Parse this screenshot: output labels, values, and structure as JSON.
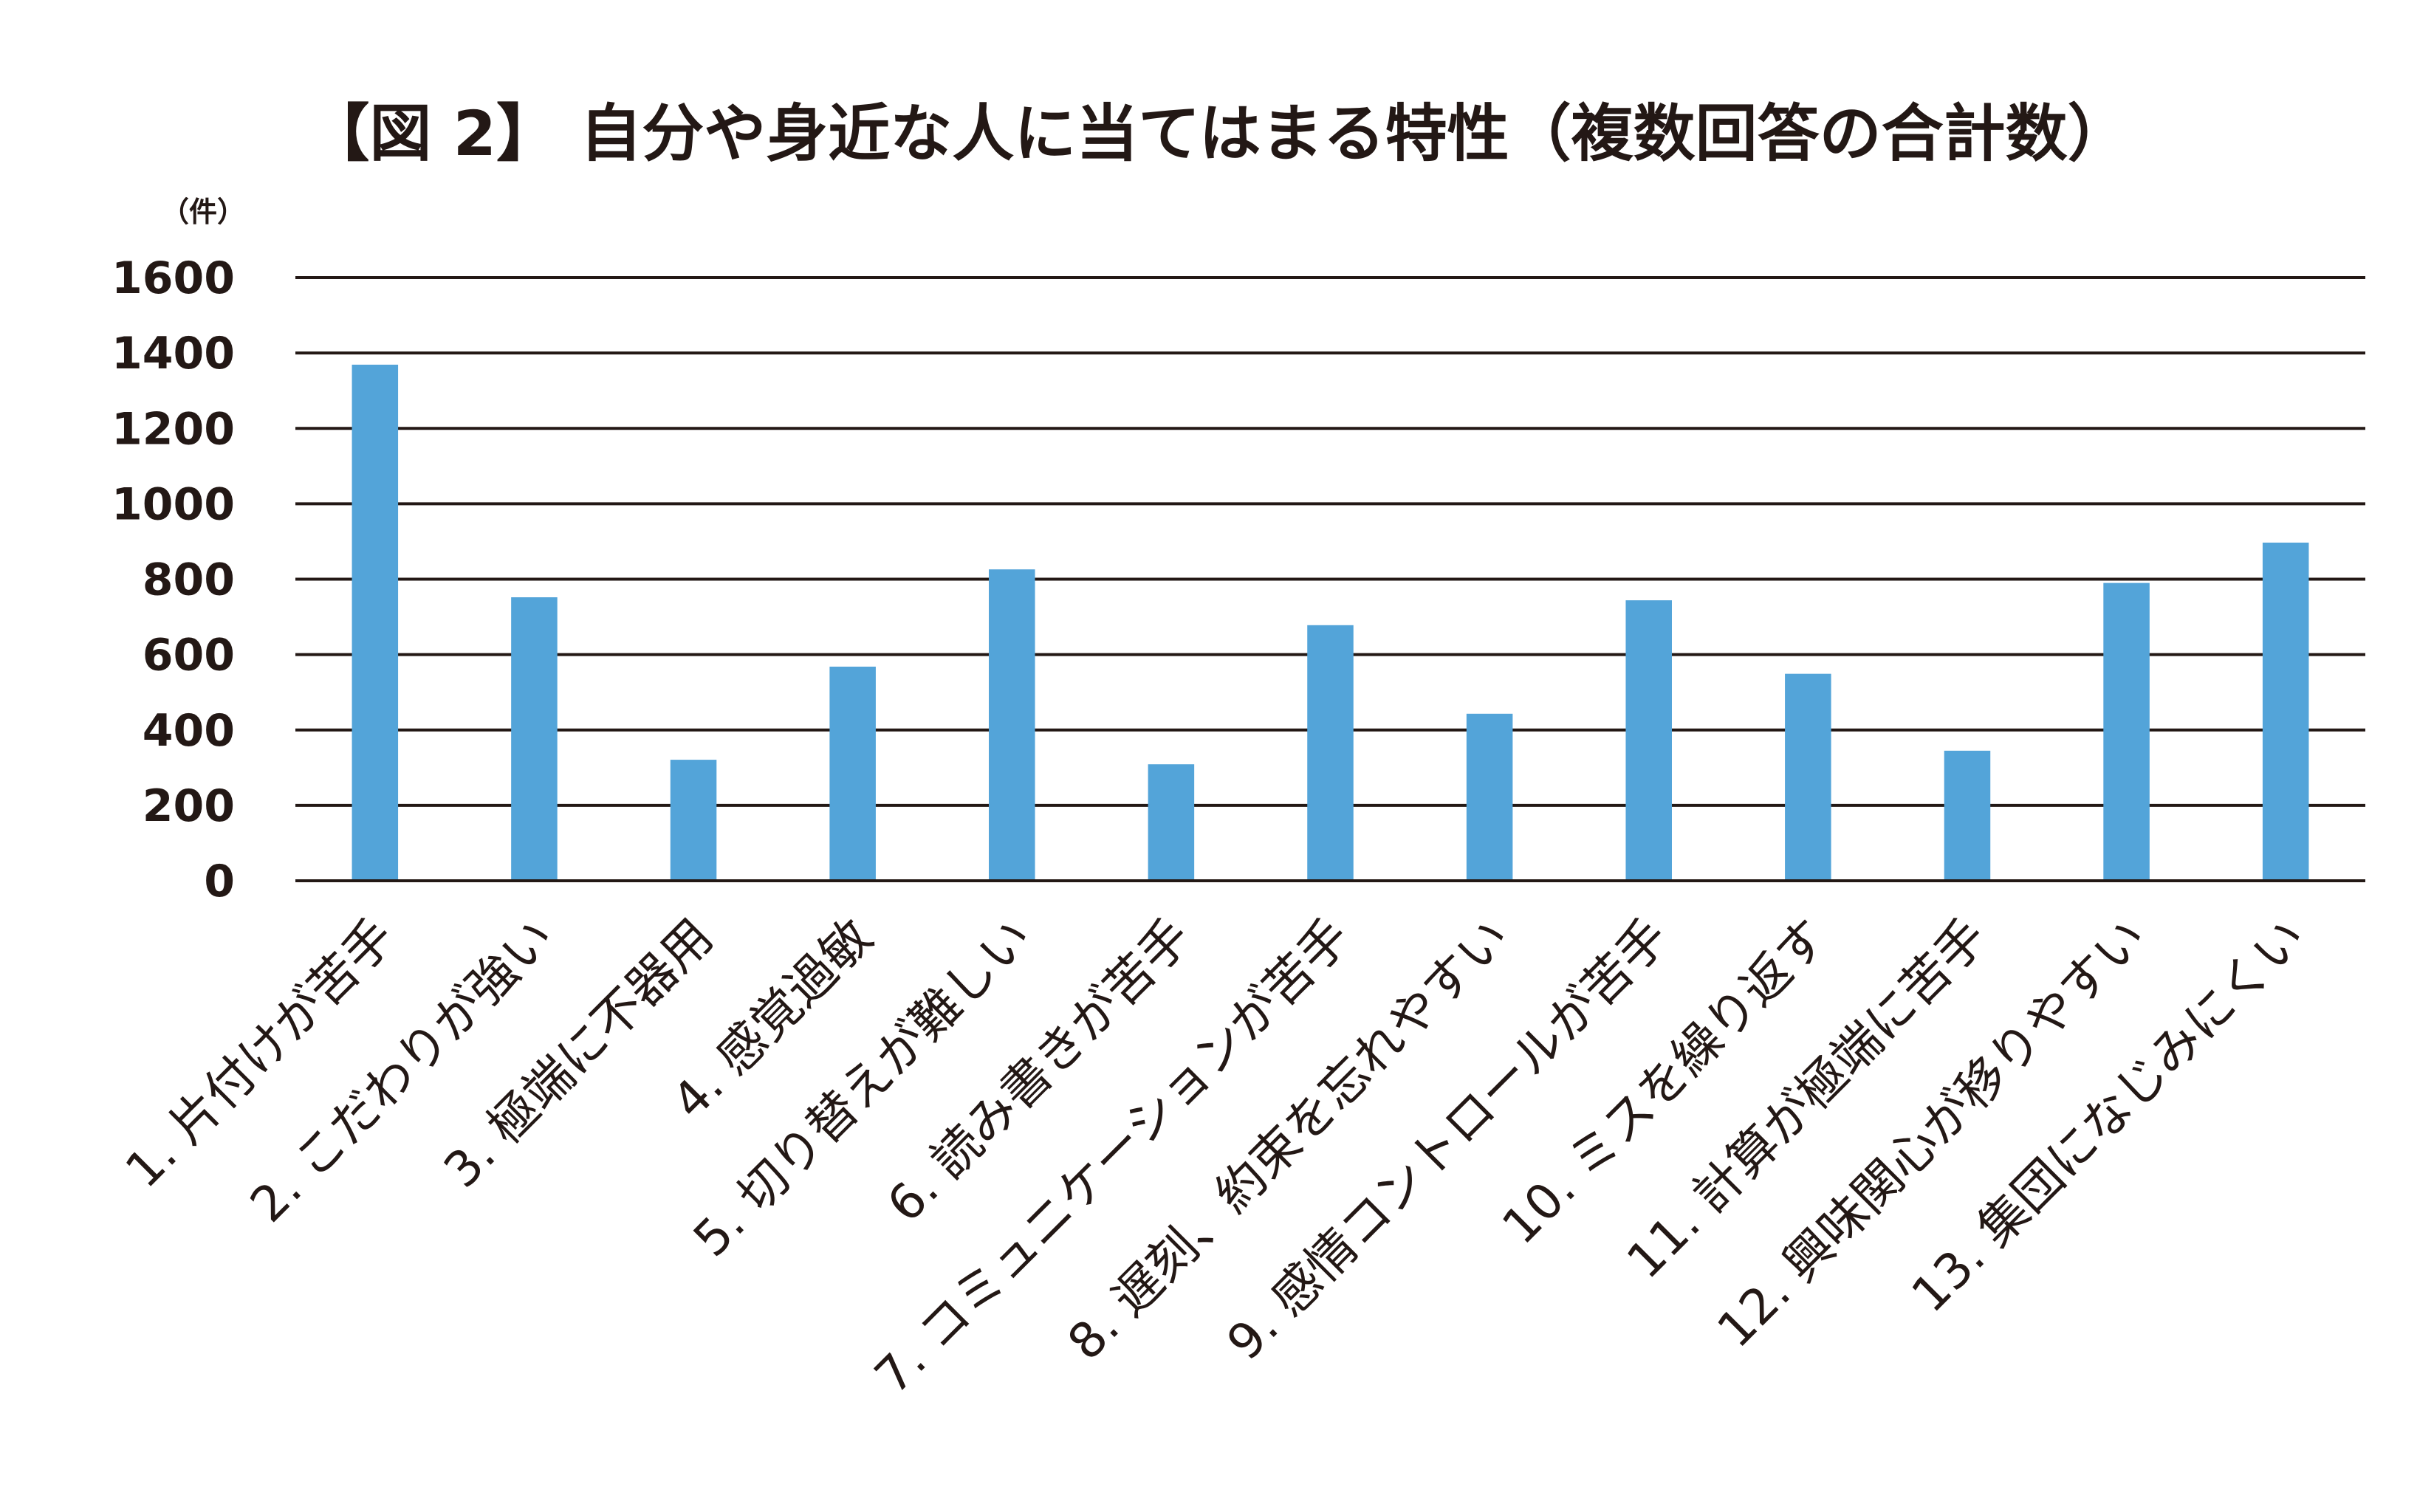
{
  "chart_data": {
    "type": "bar",
    "title": "【図 2】 自分や身近な人に当てはまる特性（複数回答の合計数）",
    "ylabel": "（件）",
    "xlabel": "",
    "ylim": [
      0,
      1600
    ],
    "yticks": [
      0,
      200,
      400,
      600,
      800,
      1000,
      1200,
      1400,
      1600
    ],
    "grid": true,
    "bar_color": "#53a4d9",
    "categories": [
      "1. 片付けが苦手",
      "2. こだわりが強い",
      "3. 極端に不器用",
      "4. 感覚過敏",
      "5. 切り替えが難しい",
      "6. 読み書きが苦手",
      "7. コミュニケーションが苦手",
      "8. 遅刻、約束を忘れやすい",
      "9. 感情コントロールが苦手",
      "10. ミスを繰り返す",
      "11. 計算が極端に苦手",
      "12. 興味関心が移りやすい",
      "13. 集団になじみにくい"
    ],
    "values": [
      1369,
      752,
      321,
      568,
      826,
      309,
      678,
      443,
      744,
      549,
      345,
      790,
      897
    ]
  }
}
